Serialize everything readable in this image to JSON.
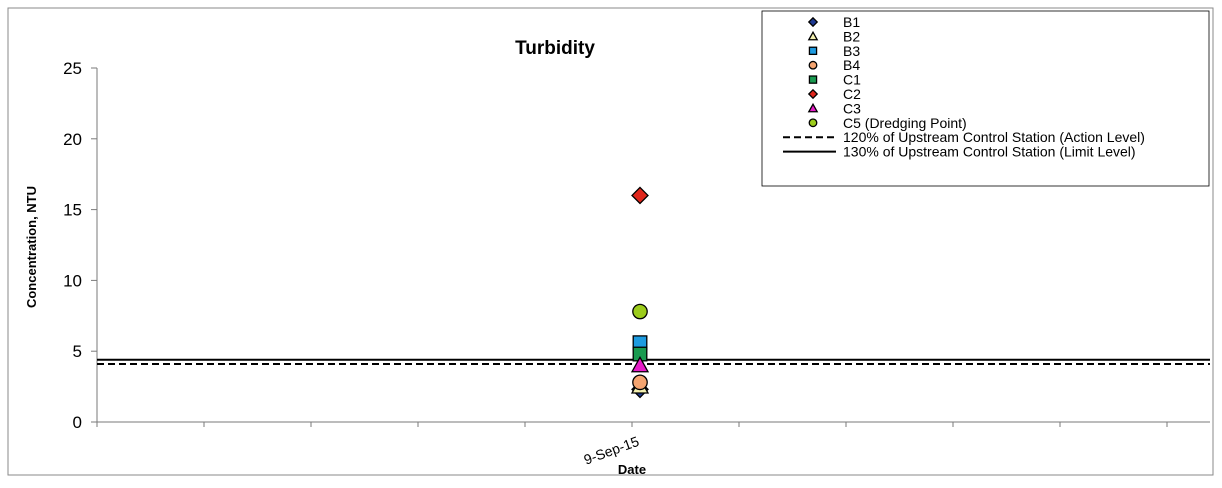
{
  "chart_data": {
    "type": "scatter",
    "title": "Turbidity",
    "xlabel": "Date",
    "ylabel": "Concentration, NTU",
    "ylim": [
      0,
      25
    ],
    "yticks": [
      0,
      5,
      10,
      15,
      20,
      25
    ],
    "x_categories": [
      "9-Sep-15"
    ],
    "grid": false,
    "legend_position": "top-right",
    "series": [
      {
        "name": "B1",
        "marker": "diamond",
        "color": "#1f3a93",
        "x": "9-Sep-15",
        "y": 2.3
      },
      {
        "name": "B2",
        "marker": "triangle",
        "color": "#f3f0b0",
        "x": "9-Sep-15",
        "y": 2.5
      },
      {
        "name": "B3",
        "marker": "square",
        "color": "#1e9be0",
        "x": "9-Sep-15",
        "y": 5.6
      },
      {
        "name": "B4",
        "marker": "circle",
        "color": "#f4a470",
        "x": "9-Sep-15",
        "y": 2.8
      },
      {
        "name": "C1",
        "marker": "square",
        "color": "#1a9a50",
        "x": "9-Sep-15",
        "y": 4.8
      },
      {
        "name": "C2",
        "marker": "diamond",
        "color": "#e0261c",
        "x": "9-Sep-15",
        "y": 16.0
      },
      {
        "name": "C3",
        "marker": "triangle",
        "color": "#e61ec8",
        "x": "9-Sep-15",
        "y": 4.0
      },
      {
        "name": "C5 (Dredging Point)",
        "marker": "circle",
        "color": "#9ccc1c",
        "x": "9-Sep-15",
        "y": 7.8
      }
    ],
    "reference_lines": [
      {
        "name": "120% of Upstream Control Station (Action Level)",
        "style": "dashed",
        "color": "#000000",
        "y": 4.1
      },
      {
        "name": "130% of Upstream Control Station (Limit Level)",
        "style": "solid",
        "color": "#000000",
        "y": 4.4
      }
    ]
  }
}
